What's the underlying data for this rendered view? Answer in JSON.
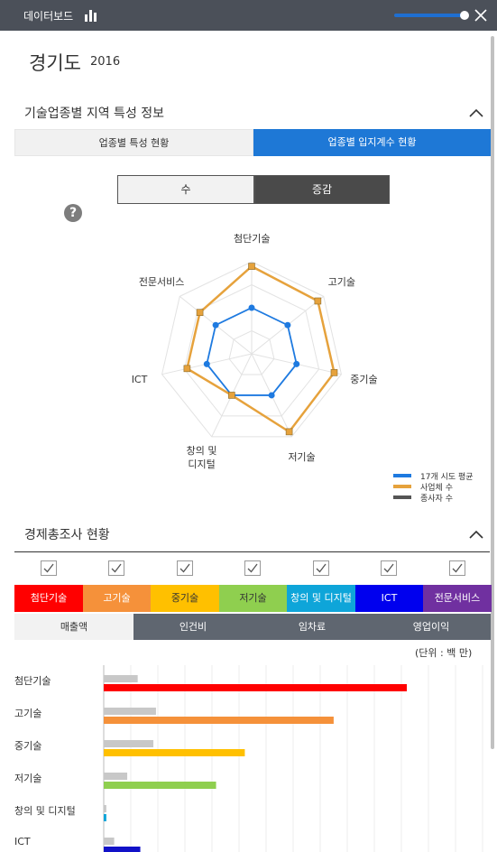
{
  "header": {
    "title": "데이터보드",
    "slider_value": 1.0,
    "accent": "#1f6fd1"
  },
  "region": {
    "name": "경기도",
    "year": "2016"
  },
  "section1": {
    "title": "기술업종별 지역 특성 정보",
    "tabs": [
      {
        "label": "업종별 특성 현황",
        "active": false
      },
      {
        "label": "업종별 입지계수 현황",
        "active": true
      }
    ],
    "toggles": [
      {
        "label": "수",
        "active": false
      },
      {
        "label": "증감",
        "active": true
      }
    ],
    "help_label": "?"
  },
  "chart_data": [
    {
      "type": "radar",
      "axes": [
        "첨단기술",
        "고기술",
        "중기술",
        "저기술",
        "창의 및 디지털",
        "ICT",
        "전문서비스"
      ],
      "axis_label_display": [
        "첨단기술",
        "고기술",
        "중기술",
        "저기술",
        "창의 및\n디지털",
        "ICT",
        "전문서비스"
      ],
      "rmax": 1.0,
      "series": [
        {
          "name": "17개 시도 평균",
          "color": "#1e7ae0",
          "values": [
            0.5,
            0.5,
            0.5,
            0.5,
            0.5,
            0.5,
            0.5
          ]
        },
        {
          "name": "사업체 수",
          "color": "#e6a23c",
          "values": [
            0.95,
            0.92,
            0.92,
            0.94,
            0.5,
            0.72,
            0.72
          ]
        },
        {
          "name": "종사자 수",
          "color": "#555555",
          "values": []
        }
      ],
      "legend_position": "bottom-right"
    },
    {
      "type": "bar",
      "orientation": "horizontal",
      "unit": "(단위 : 백 만)",
      "categories": [
        "첨단기술",
        "고기술",
        "중기술",
        "저기술",
        "창의 및 디지털",
        "ICT"
      ],
      "series": [
        {
          "color": "#c8c8c8",
          "values": [
            13,
            20,
            19,
            9,
            1,
            4
          ]
        },
        {
          "values": [
            116,
            88,
            54,
            43,
            1,
            14
          ]
        }
      ],
      "bar_colors": [
        "#ff0000",
        "#f5913a",
        "#ffc000",
        "#8fcf4f",
        "#0ea5d9",
        "#1212c8"
      ],
      "xlim": [
        0,
        145
      ],
      "grid": true
    }
  ],
  "section2": {
    "title": "경제총조사 현황",
    "categories": [
      {
        "label": "첨단기술",
        "color": "#ff0000",
        "checked": true
      },
      {
        "label": "고기술",
        "color": "#f5913a",
        "checked": true
      },
      {
        "label": "중기술",
        "color": "#ffc000",
        "checked": true
      },
      {
        "label": "저기술",
        "color": "#8fcf4f",
        "checked": true
      },
      {
        "label": "창의 및 디지털",
        "color": "#0ea5d9",
        "checked": true
      },
      {
        "label": "ICT",
        "color": "#0000ee",
        "checked": true
      },
      {
        "label": "전문서비스",
        "color": "#7030a0",
        "checked": true
      }
    ],
    "metric_tabs": [
      {
        "label": "매출액",
        "active": true
      },
      {
        "label": "인건비",
        "active": false
      },
      {
        "label": "임차료",
        "active": false
      },
      {
        "label": "영업이익",
        "active": false
      }
    ]
  }
}
